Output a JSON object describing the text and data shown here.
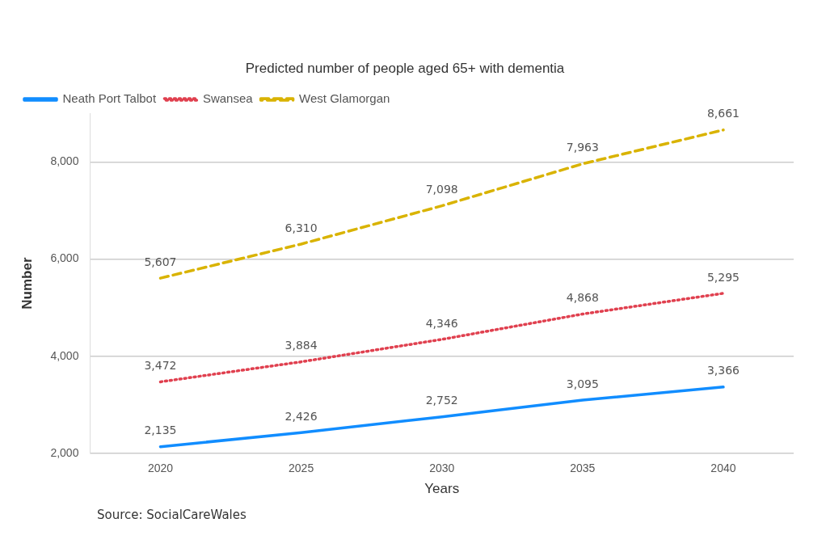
{
  "chart_data": {
    "type": "line",
    "title": "Predicted number of people aged 65+ with dementia",
    "xlabel": "Years",
    "ylabel": "Number",
    "categories": [
      "2020",
      "2025",
      "2030",
      "2035",
      "2040"
    ],
    "series": [
      {
        "name": "Neath Port Talbot",
        "color": "#118dff",
        "line_style": "solid",
        "values": [
          2135,
          2426,
          2752,
          3095,
          3366
        ],
        "value_labels": [
          "2,135",
          "2,426",
          "2,752",
          "3,095",
          "3,366"
        ]
      },
      {
        "name": "Swansea",
        "color": "#e0404f",
        "line_style": "dotted",
        "values": [
          3472,
          3884,
          4346,
          4868,
          5295
        ],
        "value_labels": [
          "3,472",
          "3,884",
          "4,346",
          "4,868",
          "5,295"
        ]
      },
      {
        "name": "West Glamorgan",
        "color": "#d9b300",
        "line_style": "dashed",
        "values": [
          5607,
          6310,
          7098,
          7963,
          8661
        ],
        "value_labels": [
          "5,607",
          "6,310",
          "7,098",
          "7,963",
          "8,661"
        ]
      }
    ],
    "ylim": [
      2000,
      9000
    ],
    "yticks": [
      {
        "value": 2000,
        "label": "2,000"
      },
      {
        "value": 4000,
        "label": "4,000"
      },
      {
        "value": 6000,
        "label": "6,000"
      },
      {
        "value": 8000,
        "label": "8,000"
      }
    ],
    "grid": "y",
    "legend": "top left",
    "marker": "none",
    "annotations": [
      "Source:  SocialCareWales"
    ]
  }
}
